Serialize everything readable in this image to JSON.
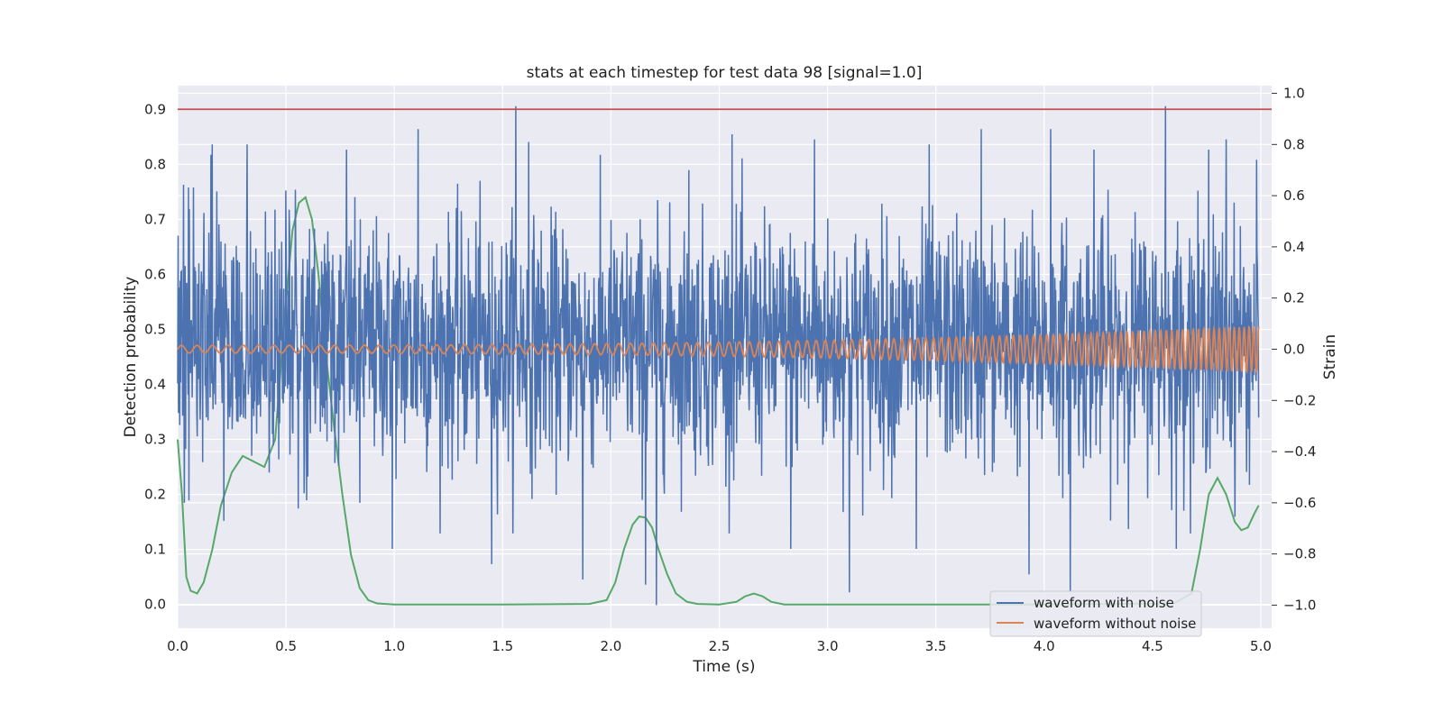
{
  "chart_data": {
    "type": "line",
    "title": "stats at each timestep for test data 98 [signal=1.0]",
    "xlabel": "Time (s)",
    "ylabel_left": "Detection probability",
    "ylabel_right": "Strain",
    "xlim": [
      0.0,
      5.05
    ],
    "ylim_left": [
      -0.043,
      0.943
    ],
    "ylim_right": [
      -1.09,
      1.03
    ],
    "x_ticks": [
      "0.0",
      "0.5",
      "1.0",
      "1.5",
      "2.0",
      "2.5",
      "3.0",
      "3.5",
      "4.0",
      "4.5",
      "5.0"
    ],
    "y_ticks_left": [
      "0.0",
      "0.1",
      "0.2",
      "0.3",
      "0.4",
      "0.5",
      "0.6",
      "0.7",
      "0.8",
      "0.9"
    ],
    "y_ticks_right": [
      "−1.0",
      "−0.8",
      "−0.6",
      "−0.4",
      "−0.2",
      "0.0",
      "0.2",
      "0.4",
      "0.6",
      "0.8",
      "1.0"
    ],
    "grid": true,
    "legend_position": "lower-right",
    "threshold": {
      "axis": "left",
      "y": 0.9,
      "color": "#c44e52"
    },
    "series": [
      {
        "name": "waveform with noise",
        "axis": "right",
        "color": "#4c72b0",
        "description": "dense noisy strain, roughly spanning -0.6 to 0.85",
        "peaks": [
          [
            0.03,
            -0.6
          ],
          [
            0.16,
            0.8
          ],
          [
            0.32,
            0.8
          ],
          [
            0.5,
            0.62
          ],
          [
            0.78,
            0.78
          ],
          [
            0.84,
            -0.6
          ],
          [
            0.99,
            -0.78
          ],
          [
            1.11,
            0.86
          ],
          [
            1.45,
            -0.84
          ],
          [
            1.56,
            0.95
          ],
          [
            1.62,
            0.81
          ],
          [
            1.87,
            -0.9
          ],
          [
            2.16,
            -0.92
          ],
          [
            2.21,
            -1.0
          ],
          [
            2.36,
            0.7
          ],
          [
            2.56,
            0.84
          ],
          [
            2.83,
            -0.78
          ],
          [
            2.94,
            0.82
          ],
          [
            3.1,
            -0.95
          ],
          [
            3.41,
            -0.78
          ],
          [
            3.47,
            0.8
          ],
          [
            3.71,
            0.86
          ],
          [
            3.93,
            -0.88
          ],
          [
            4.03,
            0.86
          ],
          [
            4.12,
            -0.95
          ],
          [
            4.23,
            0.78
          ],
          [
            4.56,
            0.95
          ],
          [
            4.61,
            -0.78
          ],
          [
            4.76,
            0.78
          ],
          [
            4.84,
            0.82
          ],
          [
            4.98,
            0.74
          ]
        ]
      },
      {
        "name": "waveform without noise",
        "axis": "right",
        "color": "#dd8452",
        "description": "chirp: amplitude grows from about 0.015 to 0.09, frequency from about 14 Hz to 45 Hz",
        "amplitude_start": 0.015,
        "amplitude_end": 0.09,
        "frequency_start_hz": 14,
        "frequency_end_hz": 45
      },
      {
        "axis": "left",
        "color": "#55a868",
        "x": [
          0.0,
          0.02,
          0.04,
          0.06,
          0.09,
          0.12,
          0.16,
          0.2,
          0.25,
          0.3,
          0.35,
          0.4,
          0.45,
          0.5,
          0.53,
          0.56,
          0.59,
          0.62,
          0.65,
          0.68,
          0.72,
          0.76,
          0.8,
          0.84,
          0.88,
          0.92,
          1.0,
          1.5,
          1.9,
          1.98,
          2.02,
          2.06,
          2.1,
          2.13,
          2.16,
          2.19,
          2.22,
          2.26,
          2.3,
          2.35,
          2.4,
          2.5,
          2.58,
          2.62,
          2.66,
          2.7,
          2.74,
          2.8,
          3.0,
          3.5,
          4.0,
          4.6,
          4.68,
          4.72,
          4.76,
          4.8,
          4.84,
          4.88,
          4.91,
          4.94,
          4.97,
          4.99
        ],
        "y": [
          0.3,
          0.2,
          0.05,
          0.025,
          0.02,
          0.04,
          0.1,
          0.18,
          0.24,
          0.27,
          0.26,
          0.25,
          0.3,
          0.55,
          0.68,
          0.73,
          0.74,
          0.7,
          0.6,
          0.47,
          0.33,
          0.2,
          0.09,
          0.03,
          0.008,
          0.002,
          0.0,
          0.0,
          0.001,
          0.008,
          0.04,
          0.1,
          0.145,
          0.16,
          0.158,
          0.14,
          0.1,
          0.055,
          0.02,
          0.005,
          0.001,
          0.0,
          0.005,
          0.015,
          0.02,
          0.015,
          0.005,
          0.0,
          0.0,
          0.0,
          0.0,
          0.002,
          0.02,
          0.1,
          0.2,
          0.23,
          0.2,
          0.15,
          0.135,
          0.14,
          0.165,
          0.18
        ]
      }
    ]
  }
}
